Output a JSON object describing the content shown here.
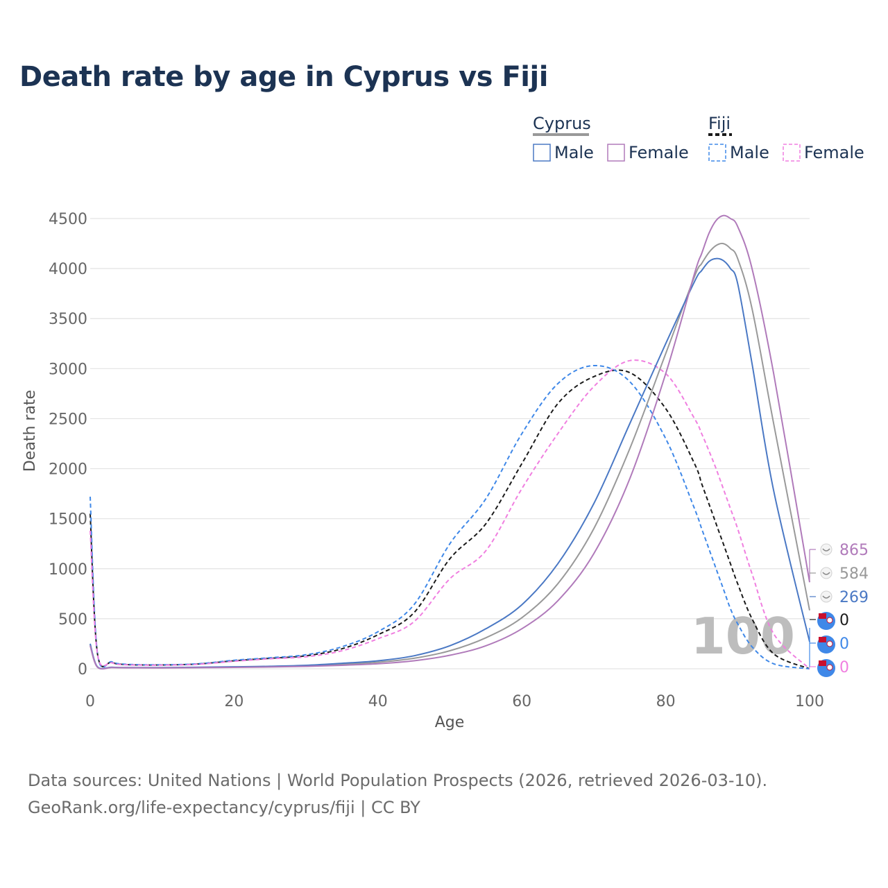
{
  "title": "Death rate by age in Cyprus vs Fiji",
  "legend": {
    "groups": [
      {
        "name": "Cyprus",
        "style": "solid",
        "entries": [
          "Male",
          "Female"
        ]
      },
      {
        "name": "Fiji",
        "style": "dashed",
        "entries": [
          "Male",
          "Female"
        ]
      }
    ]
  },
  "footer": {
    "line1": "Data sources: United Nations | World Population Prospects (2026, retrieved 2026-03-10).",
    "line2": "GeoRank.org/life-expectancy/cyprus/fiji | CC BY"
  },
  "chart_data": {
    "type": "line",
    "xlabel": "Age",
    "ylabel": "Death rate",
    "xlim": [
      0,
      100
    ],
    "ylim": [
      0,
      4500
    ],
    "xticks": [
      0,
      20,
      40,
      60,
      80,
      100
    ],
    "yticks": [
      0,
      500,
      1000,
      1500,
      2000,
      2500,
      3000,
      3500,
      4000,
      4500
    ],
    "grid": true,
    "legend_position": "top-right",
    "age_overlay": "100",
    "x": [
      0,
      1,
      3,
      5,
      10,
      15,
      20,
      25,
      30,
      35,
      40,
      45,
      50,
      55,
      60,
      65,
      70,
      75,
      80,
      84,
      85,
      86,
      87,
      88,
      89,
      90,
      92,
      95,
      100
    ],
    "series": [
      {
        "name": "Cyprus Male",
        "country": "Cyprus",
        "sex": "Male",
        "color": "#4a78c4",
        "dash": false,
        "values": [
          250,
          20,
          15,
          12,
          12,
          15,
          20,
          25,
          35,
          55,
          80,
          130,
          230,
          400,
          640,
          1050,
          1650,
          2450,
          3250,
          3870,
          3980,
          4070,
          4100,
          4080,
          4000,
          3850,
          3050,
          1780,
          269
        ],
        "end_label": "269"
      },
      {
        "name": "Cyprus Total",
        "country": "Cyprus",
        "sex": "Total",
        "color": "#999999",
        "dash": false,
        "values": [
          240,
          18,
          14,
          11,
          10,
          13,
          17,
          22,
          30,
          45,
          65,
          105,
          180,
          310,
          510,
          850,
          1400,
          2200,
          3150,
          3920,
          4050,
          4160,
          4230,
          4250,
          4200,
          4100,
          3600,
          2450,
          584
        ],
        "end_label": "584"
      },
      {
        "name": "Cyprus Female",
        "country": "Cyprus",
        "sex": "Female",
        "color": "#b07aba",
        "dash": false,
        "values": [
          230,
          16,
          12,
          10,
          9,
          11,
          14,
          18,
          24,
          35,
          50,
          80,
          135,
          230,
          400,
          680,
          1150,
          1900,
          2950,
          3950,
          4150,
          4350,
          4480,
          4530,
          4500,
          4420,
          4000,
          2950,
          865
        ],
        "end_label": "865"
      },
      {
        "name": "Fiji Male",
        "country": "Fiji",
        "sex": "Male",
        "color": "#3f88e8",
        "dash": true,
        "values": [
          1720,
          160,
          70,
          45,
          40,
          50,
          85,
          110,
          140,
          220,
          370,
          640,
          1250,
          1700,
          2350,
          2850,
          3030,
          2870,
          2300,
          1600,
          1400,
          1200,
          1000,
          800,
          600,
          450,
          220,
          50,
          0
        ],
        "end_label": "0"
      },
      {
        "name": "Fiji Total",
        "country": "Fiji",
        "sex": "Total",
        "color": "#1a1a1a",
        "dash": true,
        "values": [
          1550,
          155,
          65,
          42,
          38,
          48,
          80,
          105,
          130,
          200,
          340,
          560,
          1100,
          1450,
          2050,
          2650,
          2920,
          2960,
          2600,
          2050,
          1850,
          1650,
          1450,
          1250,
          1050,
          850,
          500,
          150,
          0
        ],
        "end_label": "0"
      },
      {
        "name": "Fiji Female",
        "country": "Fiji",
        "sex": "Female",
        "color": "#f07fe0",
        "dash": true,
        "values": [
          1380,
          150,
          60,
          40,
          36,
          45,
          75,
          100,
          120,
          180,
          300,
          470,
          900,
          1180,
          1800,
          2350,
          2820,
          3080,
          2950,
          2500,
          2350,
          2180,
          2000,
          1800,
          1600,
          1400,
          950,
          350,
          0
        ],
        "end_label": "0"
      }
    ]
  }
}
